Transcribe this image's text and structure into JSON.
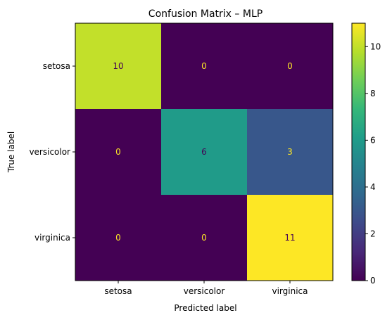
{
  "chart_data": {
    "type": "heatmap",
    "title": "Confusion Matrix – MLP",
    "xlabel": "Predicted label",
    "ylabel": "True label",
    "x_categories": [
      "setosa",
      "versicolor",
      "virginica"
    ],
    "y_categories": [
      "setosa",
      "versicolor",
      "virginica"
    ],
    "matrix": [
      [
        10,
        0,
        0
      ],
      [
        0,
        6,
        3
      ],
      [
        0,
        0,
        11
      ]
    ],
    "colormap": "viridis",
    "vmin": 0,
    "vmax": 11,
    "colorbar_ticks": [
      0,
      2,
      4,
      6,
      8,
      10
    ],
    "text_colors": {
      "dark": "#fde725",
      "light": "#440154"
    },
    "viridis_stops": [
      "#440154",
      "#482878",
      "#3e4989",
      "#31688e",
      "#26828e",
      "#1f9e89",
      "#35b779",
      "#6ece58",
      "#b5de2b",
      "#fde725"
    ]
  }
}
